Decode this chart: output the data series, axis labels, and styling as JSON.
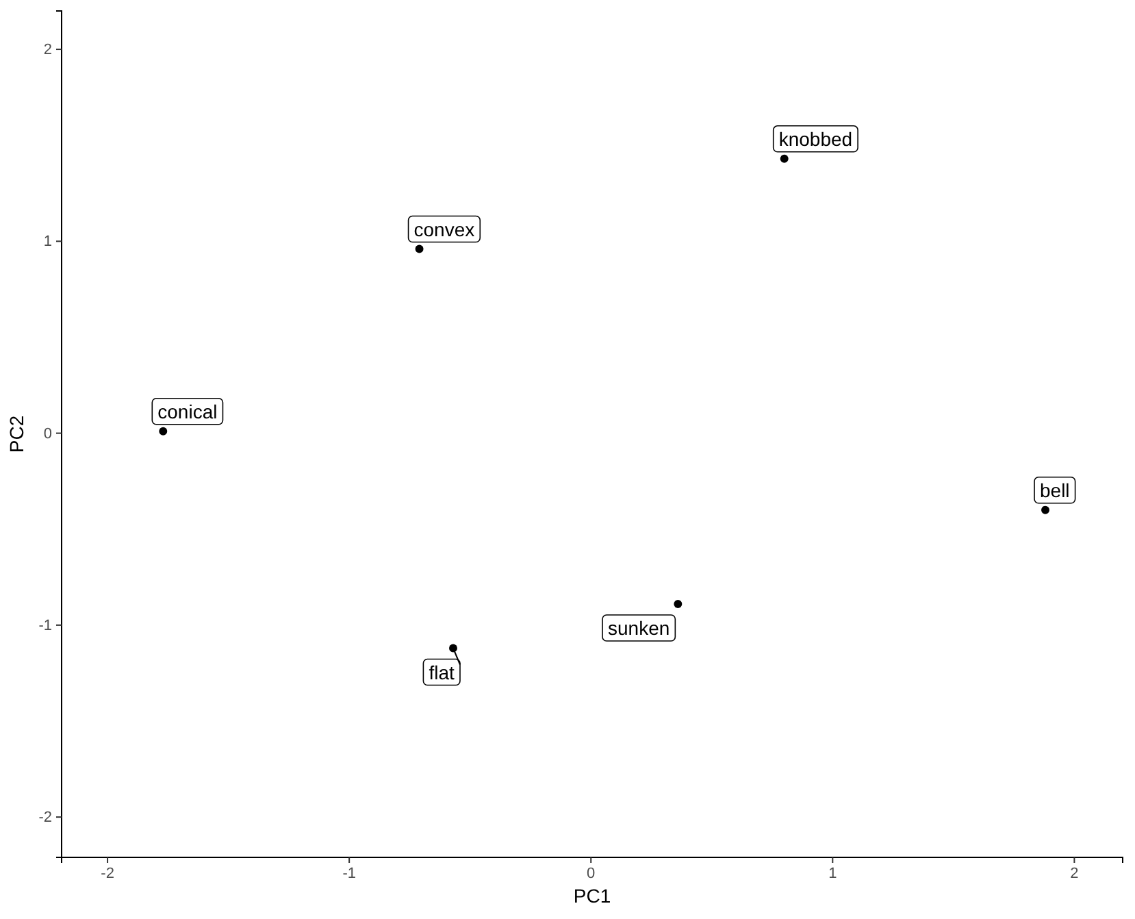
{
  "chart_data": {
    "type": "scatter",
    "xlabel": "PC1",
    "ylabel": "PC2",
    "x": [
      0.8,
      -0.71,
      -1.77,
      1.88,
      0.36,
      -0.57
    ],
    "series": [
      {
        "color": "#000000",
        "values": [
          1.43,
          0.96,
          0.01,
          -0.4,
          -0.89,
          -1.12
        ]
      }
    ],
    "annotations": [
      {
        "text": "knobbed",
        "x": 0.8,
        "y": 1.43
      },
      {
        "text": "convex",
        "x": -0.71,
        "y": 0.96
      },
      {
        "text": "conical",
        "x": -1.77,
        "y": 0.01
      },
      {
        "text": "bell",
        "x": 1.88,
        "y": -0.4
      },
      {
        "text": "sunken",
        "x": 0.36,
        "y": -0.89
      },
      {
        "text": "flat",
        "x": -0.57,
        "y": -1.12
      }
    ],
    "xlim": [
      -2.19,
      2.2
    ],
    "ylim": [
      -2.21,
      2.2
    ],
    "xticks": [
      -2,
      -1,
      0,
      1,
      2
    ],
    "yticks": [
      -2,
      -1,
      0,
      1,
      2
    ],
    "grid": false,
    "marker": "circle"
  }
}
